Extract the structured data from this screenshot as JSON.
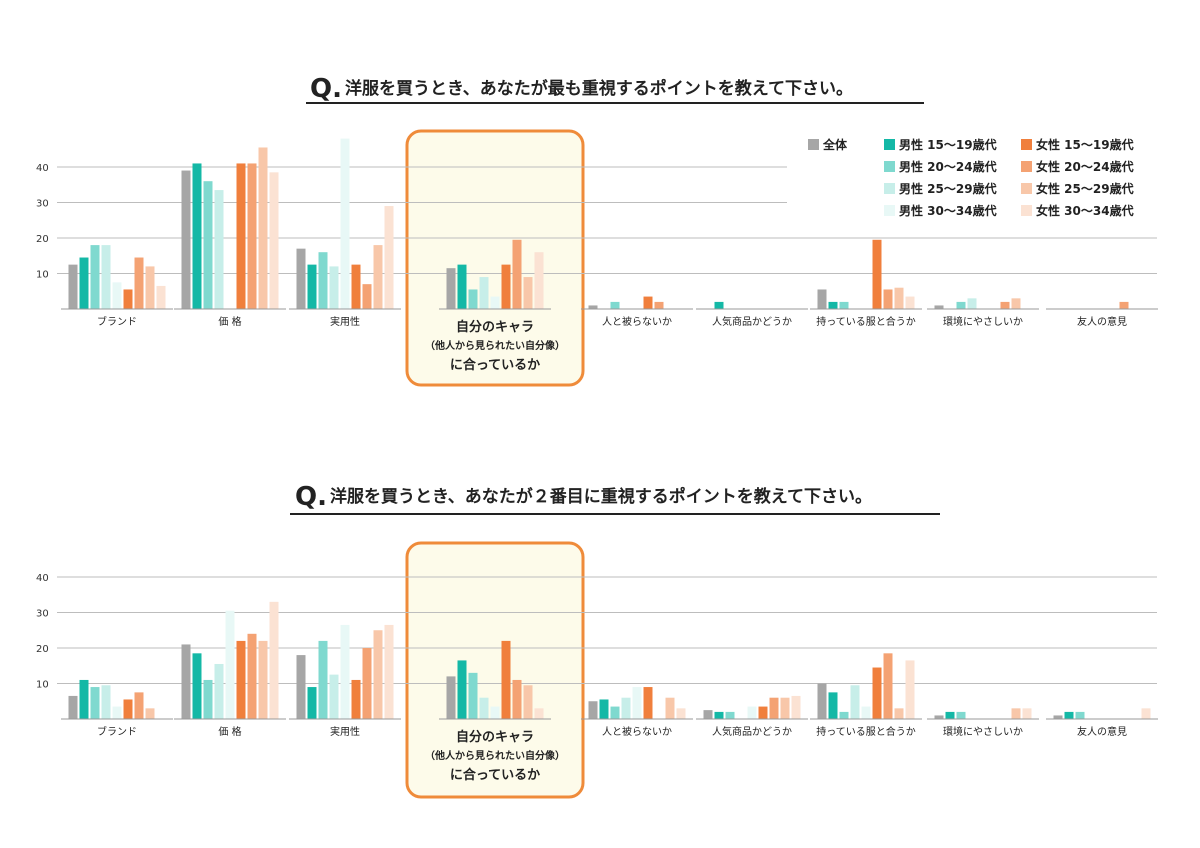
{
  "colors": {
    "series": [
      "#a6a6a6",
      "#14b8a6",
      "#7fd9cf",
      "#c7eee9",
      "#e8f8f6",
      "#f07f3c",
      "#f4a273",
      "#f8c7a9",
      "#fbe2d3"
    ],
    "highlight_border": "#ef8b3a",
    "highlight_fill": "#fdfbea"
  },
  "legend": [
    {
      "label": "全体"
    },
    {
      "label": "男性 15～19歳代"
    },
    {
      "label": "男性 20～24歳代"
    },
    {
      "label": "男性 25～29歳代"
    },
    {
      "label": "男性 30～34歳代"
    },
    {
      "label": "女性 15～19歳代"
    },
    {
      "label": "女性 20～24歳代"
    },
    {
      "label": "女性 25～29歳代"
    },
    {
      "label": "女性 30～34歳代"
    }
  ],
  "highlight_label": {
    "line1": "自分のキャラ",
    "line2": "（他人から見られたい自分像）",
    "line3": "に合っているか"
  },
  "chart_data": [
    {
      "type": "bar",
      "title": "洋服を買うとき、あなたが最も重視するポイントを教えて下さい。",
      "title_prefix": "Q.",
      "categories": [
        "ブランド",
        "価 格",
        "実用性",
        "自分のキャラ（他人から見られたい自分像）に合っているか",
        "人と被らないか",
        "人気商品かどうか",
        "持っている服と合うか",
        "環境にやさしいか",
        "友人の意見"
      ],
      "ylim": [
        0,
        50
      ],
      "yticks": [
        10,
        20,
        30,
        40
      ],
      "grid": true,
      "legend_position": "top-right",
      "series": [
        {
          "name": "全体",
          "values": [
            12.5,
            39,
            17,
            11.5,
            1,
            0,
            5.5,
            1,
            0
          ]
        },
        {
          "name": "男性 15～19歳代",
          "values": [
            14.5,
            41,
            12.5,
            12.5,
            0,
            2,
            2,
            0,
            0
          ]
        },
        {
          "name": "男性 20～24歳代",
          "values": [
            18,
            36,
            16,
            5.5,
            2,
            0,
            2,
            2,
            0
          ]
        },
        {
          "name": "男性 25～29歳代",
          "values": [
            18,
            33.5,
            12,
            9,
            0,
            0,
            0,
            3,
            0
          ]
        },
        {
          "name": "男性 30～34歳代",
          "values": [
            7.5,
            0,
            48,
            3.5,
            0,
            0,
            0,
            0,
            0
          ]
        },
        {
          "name": "女性 15～19歳代",
          "values": [
            5.5,
            41,
            12.5,
            12.5,
            3.5,
            0,
            19.5,
            0,
            0
          ]
        },
        {
          "name": "女性 20～24歳代",
          "values": [
            14.5,
            41,
            7,
            19.5,
            2,
            0,
            5.5,
            2,
            2
          ]
        },
        {
          "name": "女性 25～29歳代",
          "values": [
            12,
            45.5,
            18,
            9,
            0,
            0,
            6,
            3,
            0
          ]
        },
        {
          "name": "女性 30～34歳代",
          "values": [
            6.5,
            38.5,
            29,
            16,
            0,
            0,
            3.5,
            0,
            0
          ]
        }
      ]
    },
    {
      "type": "bar",
      "title": "洋服を買うとき、あなたが２番目に重視するポイントを教えて下さい。",
      "title_prefix": "Q.",
      "categories": [
        "ブランド",
        "価 格",
        "実用性",
        "自分のキャラ（他人から見られたい自分像）に合っているか",
        "人と被らないか",
        "人気商品かどうか",
        "持っている服と合うか",
        "環境にやさしいか",
        "友人の意見"
      ],
      "ylim": [
        0,
        40
      ],
      "yticks": [
        10,
        20,
        30,
        40
      ],
      "grid": true,
      "series": [
        {
          "name": "全体",
          "values": [
            6.5,
            21,
            18,
            12,
            5,
            2.5,
            10,
            1,
            1
          ]
        },
        {
          "name": "男性 15～19歳代",
          "values": [
            11,
            18.5,
            9,
            16.5,
            5.5,
            2,
            7.5,
            2,
            2
          ]
        },
        {
          "name": "男性 20～24歳代",
          "values": [
            9,
            11,
            22,
            13,
            3.5,
            2,
            2,
            2,
            2
          ]
        },
        {
          "name": "男性 25～29歳代",
          "values": [
            9.5,
            15.5,
            12.5,
            6,
            6,
            0,
            9.5,
            0,
            0
          ]
        },
        {
          "name": "男性 30～34歳代",
          "values": [
            3.5,
            30.5,
            26.5,
            3.5,
            9,
            3.5,
            3.5,
            0,
            0
          ]
        },
        {
          "name": "女性 15～19歳代",
          "values": [
            5.5,
            22,
            11,
            22,
            9,
            3.5,
            14.5,
            0,
            0
          ]
        },
        {
          "name": "女性 20～24歳代",
          "values": [
            7.5,
            24,
            20,
            11,
            0,
            6,
            18.5,
            0,
            0
          ]
        },
        {
          "name": "女性 25～29歳代",
          "values": [
            3,
            22,
            25,
            9.5,
            6,
            6,
            3,
            3,
            0
          ]
        },
        {
          "name": "女性 30～34歳代",
          "values": [
            0,
            33,
            26.5,
            3,
            3,
            6.5,
            16.5,
            3,
            3
          ]
        }
      ]
    }
  ]
}
